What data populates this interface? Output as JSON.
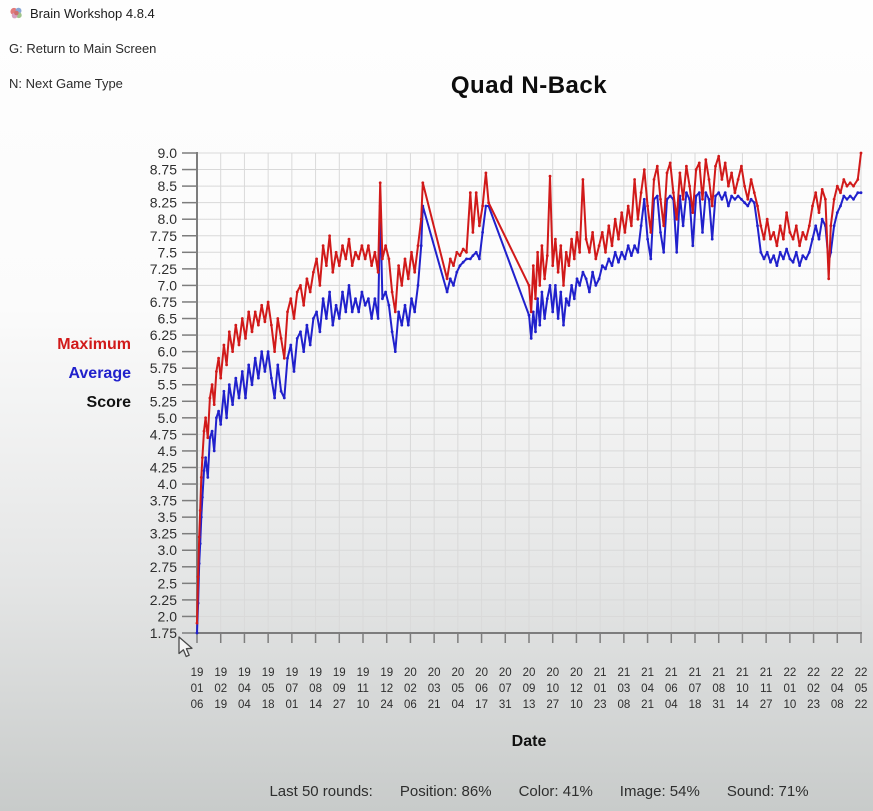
{
  "window": {
    "title": "Brain Workshop 4.8.4"
  },
  "icons": {
    "app_logo": "brain-logo",
    "pointer": "arrow-cursor"
  },
  "menu": {
    "return_main": "G: Return to Main Screen",
    "next_game": "N: Next Game Type"
  },
  "legend": {
    "entries": [
      "Maximum",
      "Average",
      "Score"
    ],
    "colors": {
      "maximum": "#d11a1a",
      "average": "#2121cc",
      "score": "#111111"
    }
  },
  "stats": {
    "prefix": "Last 50 rounds:",
    "metrics": [
      "Position: 86%",
      "Color: 41%",
      "Image: 54%",
      "Sound: 71%"
    ]
  },
  "chart_data": {
    "type": "line",
    "title": "Quad N-Back",
    "xlabel": "Date",
    "ylabel": "Score",
    "ylim": [
      1.75,
      9.0
    ],
    "ytick_step": 0.25,
    "xlim": [
      0,
      1232
    ],
    "x_unit": "days since 19/01/06",
    "x_tick_interval_days": 44,
    "grid": true,
    "legend_position": "left",
    "x_tick_labels": [
      "19/01/06",
      "19/02/19",
      "19/04/04",
      "19/05/18",
      "19/07/01",
      "19/08/14",
      "19/09/27",
      "19/11/10",
      "19/12/24",
      "20/02/06",
      "20/03/21",
      "20/05/04",
      "20/06/17",
      "20/07/31",
      "20/09/13",
      "20/10/27",
      "20/12/10",
      "21/01/23",
      "21/03/08",
      "21/04/21",
      "21/06/04",
      "21/07/18",
      "21/08/31",
      "21/10/14",
      "21/11/27",
      "22/01/10",
      "22/02/23",
      "22/04/08",
      "22/05/22"
    ],
    "x": [
      0,
      2,
      4,
      6,
      8,
      10,
      13,
      16,
      20,
      24,
      28,
      32,
      36,
      40,
      44,
      50,
      55,
      60,
      66,
      72,
      78,
      84,
      90,
      96,
      102,
      108,
      114,
      120,
      126,
      132,
      138,
      144,
      150,
      156,
      162,
      168,
      174,
      180,
      186,
      192,
      198,
      204,
      210,
      216,
      222,
      228,
      234,
      240,
      246,
      252,
      258,
      264,
      270,
      276,
      282,
      288,
      294,
      300,
      306,
      312,
      318,
      324,
      330,
      336,
      340,
      344,
      350,
      356,
      362,
      368,
      374,
      380,
      386,
      392,
      398,
      404,
      410,
      416,
      419,
      464,
      470,
      476,
      482,
      488,
      494,
      500,
      507,
      512,
      518,
      524,
      530,
      536,
      541,
      616,
      620,
      624,
      628,
      632,
      636,
      640,
      645,
      650,
      655,
      660,
      665,
      670,
      675,
      680,
      685,
      690,
      695,
      700,
      705,
      710,
      716,
      722,
      728,
      734,
      740,
      746,
      752,
      758,
      764,
      770,
      776,
      782,
      788,
      794,
      800,
      806,
      812,
      818,
      824,
      830,
      836,
      842,
      848,
      854,
      860,
      866,
      872,
      878,
      884,
      890,
      896,
      902,
      908,
      914,
      920,
      926,
      932,
      938,
      944,
      950,
      956,
      962,
      968,
      974,
      980,
      986,
      992,
      998,
      1004,
      1010,
      1016,
      1022,
      1028,
      1034,
      1040,
      1046,
      1052,
      1058,
      1064,
      1070,
      1076,
      1082,
      1088,
      1094,
      1100,
      1106,
      1112,
      1118,
      1124,
      1130,
      1136,
      1142,
      1148,
      1154,
      1160,
      1166,
      1172,
      1176,
      1182,
      1188,
      1194,
      1200,
      1206,
      1212,
      1218,
      1226,
      1232
    ],
    "series": [
      {
        "name": "Maximum",
        "color": "#d11a1a",
        "values": [
          1.9,
          2.6,
          3.2,
          3.6,
          4.1,
          4.4,
          4.8,
          5.0,
          4.7,
          5.3,
          5.5,
          5.2,
          5.7,
          5.9,
          5.6,
          6.1,
          5.8,
          6.3,
          6.0,
          6.4,
          6.1,
          6.5,
          6.2,
          6.6,
          6.3,
          6.6,
          6.4,
          6.7,
          6.45,
          6.75,
          6.4,
          6.0,
          6.5,
          6.2,
          5.9,
          6.6,
          6.8,
          6.5,
          6.9,
          7.0,
          6.7,
          7.1,
          6.9,
          7.2,
          7.4,
          7.0,
          7.6,
          7.3,
          7.75,
          7.2,
          7.5,
          7.3,
          7.6,
          7.4,
          7.7,
          7.3,
          7.5,
          7.4,
          7.6,
          7.4,
          7.6,
          7.3,
          7.5,
          7.2,
          8.55,
          7.4,
          7.6,
          7.4,
          6.9,
          6.6,
          7.3,
          7.0,
          7.4,
          7.1,
          7.5,
          7.2,
          7.6,
          8.0,
          8.55,
          7.1,
          7.4,
          7.3,
          7.5,
          7.45,
          7.55,
          7.5,
          8.4,
          7.8,
          8.4,
          7.9,
          8.2,
          8.7,
          8.25,
          7.0,
          6.6,
          7.3,
          6.8,
          7.5,
          7.0,
          7.6,
          7.1,
          7.45,
          8.65,
          7.3,
          7.7,
          7.2,
          7.6,
          7.0,
          7.5,
          7.3,
          7.7,
          7.4,
          7.8,
          7.5,
          8.6,
          7.7,
          7.5,
          7.8,
          7.4,
          7.6,
          7.8,
          7.5,
          7.9,
          7.6,
          8.0,
          7.7,
          8.1,
          7.8,
          8.2,
          7.9,
          8.6,
          8.0,
          8.4,
          8.75,
          8.2,
          7.8,
          8.6,
          8.8,
          8.3,
          7.9,
          8.7,
          8.85,
          8.4,
          8.0,
          8.7,
          8.3,
          8.8,
          8.5,
          8.1,
          8.75,
          8.85,
          8.3,
          8.9,
          8.6,
          8.2,
          8.8,
          8.95,
          8.6,
          8.85,
          8.5,
          8.7,
          8.4,
          8.6,
          8.8,
          8.5,
          8.3,
          8.6,
          8.4,
          8.2,
          7.9,
          7.7,
          8.0,
          7.7,
          7.8,
          7.6,
          7.9,
          7.7,
          8.1,
          7.8,
          7.7,
          7.9,
          7.6,
          7.8,
          7.7,
          7.9,
          8.2,
          8.4,
          8.1,
          8.45,
          8.3,
          7.1,
          7.9,
          8.3,
          8.5,
          8.4,
          8.6,
          8.5,
          8.55,
          8.5,
          8.6,
          9.0
        ]
      },
      {
        "name": "Average",
        "color": "#2121cc",
        "values": [
          1.75,
          2.2,
          2.8,
          3.1,
          3.5,
          3.8,
          4.2,
          4.4,
          4.1,
          4.7,
          4.8,
          4.5,
          5.0,
          5.1,
          4.9,
          5.4,
          5.0,
          5.5,
          5.2,
          5.6,
          5.3,
          5.7,
          5.3,
          5.8,
          5.5,
          5.9,
          5.6,
          6.0,
          5.7,
          6.0,
          5.6,
          5.3,
          5.8,
          5.4,
          5.3,
          5.9,
          6.1,
          5.7,
          6.2,
          6.3,
          6.0,
          6.4,
          6.1,
          6.5,
          6.6,
          6.3,
          6.8,
          6.5,
          6.9,
          6.4,
          6.7,
          6.5,
          6.9,
          6.6,
          7.0,
          6.6,
          6.8,
          6.6,
          6.9,
          6.7,
          6.8,
          6.5,
          6.8,
          6.5,
          8.2,
          6.8,
          6.9,
          6.7,
          6.3,
          6.0,
          6.6,
          6.4,
          6.7,
          6.4,
          6.8,
          6.6,
          7.0,
          7.6,
          8.2,
          6.9,
          7.1,
          7.0,
          7.2,
          7.3,
          7.35,
          7.4,
          7.4,
          7.45,
          7.5,
          7.4,
          7.8,
          8.2,
          8.2,
          6.55,
          6.2,
          6.6,
          6.3,
          6.8,
          6.4,
          6.9,
          6.5,
          6.8,
          7.0,
          6.6,
          7.0,
          6.5,
          6.9,
          6.4,
          6.8,
          6.7,
          7.0,
          6.8,
          7.1,
          7.0,
          7.2,
          7.1,
          6.9,
          7.2,
          7.0,
          7.1,
          7.3,
          7.25,
          7.4,
          7.3,
          7.5,
          7.35,
          7.5,
          7.4,
          7.6,
          7.45,
          7.6,
          7.5,
          7.9,
          8.3,
          7.7,
          7.4,
          8.3,
          8.35,
          7.8,
          7.5,
          8.3,
          8.35,
          8.3,
          7.5,
          8.35,
          7.9,
          8.4,
          8.3,
          7.6,
          8.35,
          8.4,
          7.8,
          8.4,
          8.3,
          7.7,
          8.35,
          8.4,
          8.3,
          8.4,
          8.2,
          8.35,
          8.3,
          8.35,
          8.3,
          8.25,
          8.2,
          8.3,
          8.25,
          7.9,
          7.5,
          7.4,
          7.5,
          7.35,
          7.45,
          7.3,
          7.5,
          7.4,
          7.55,
          7.4,
          7.35,
          7.5,
          7.3,
          7.45,
          7.4,
          7.5,
          7.7,
          7.9,
          7.7,
          8.0,
          7.9,
          7.35,
          7.5,
          7.9,
          8.1,
          8.2,
          8.35,
          8.3,
          8.35,
          8.3,
          8.4,
          8.4
        ]
      }
    ]
  }
}
